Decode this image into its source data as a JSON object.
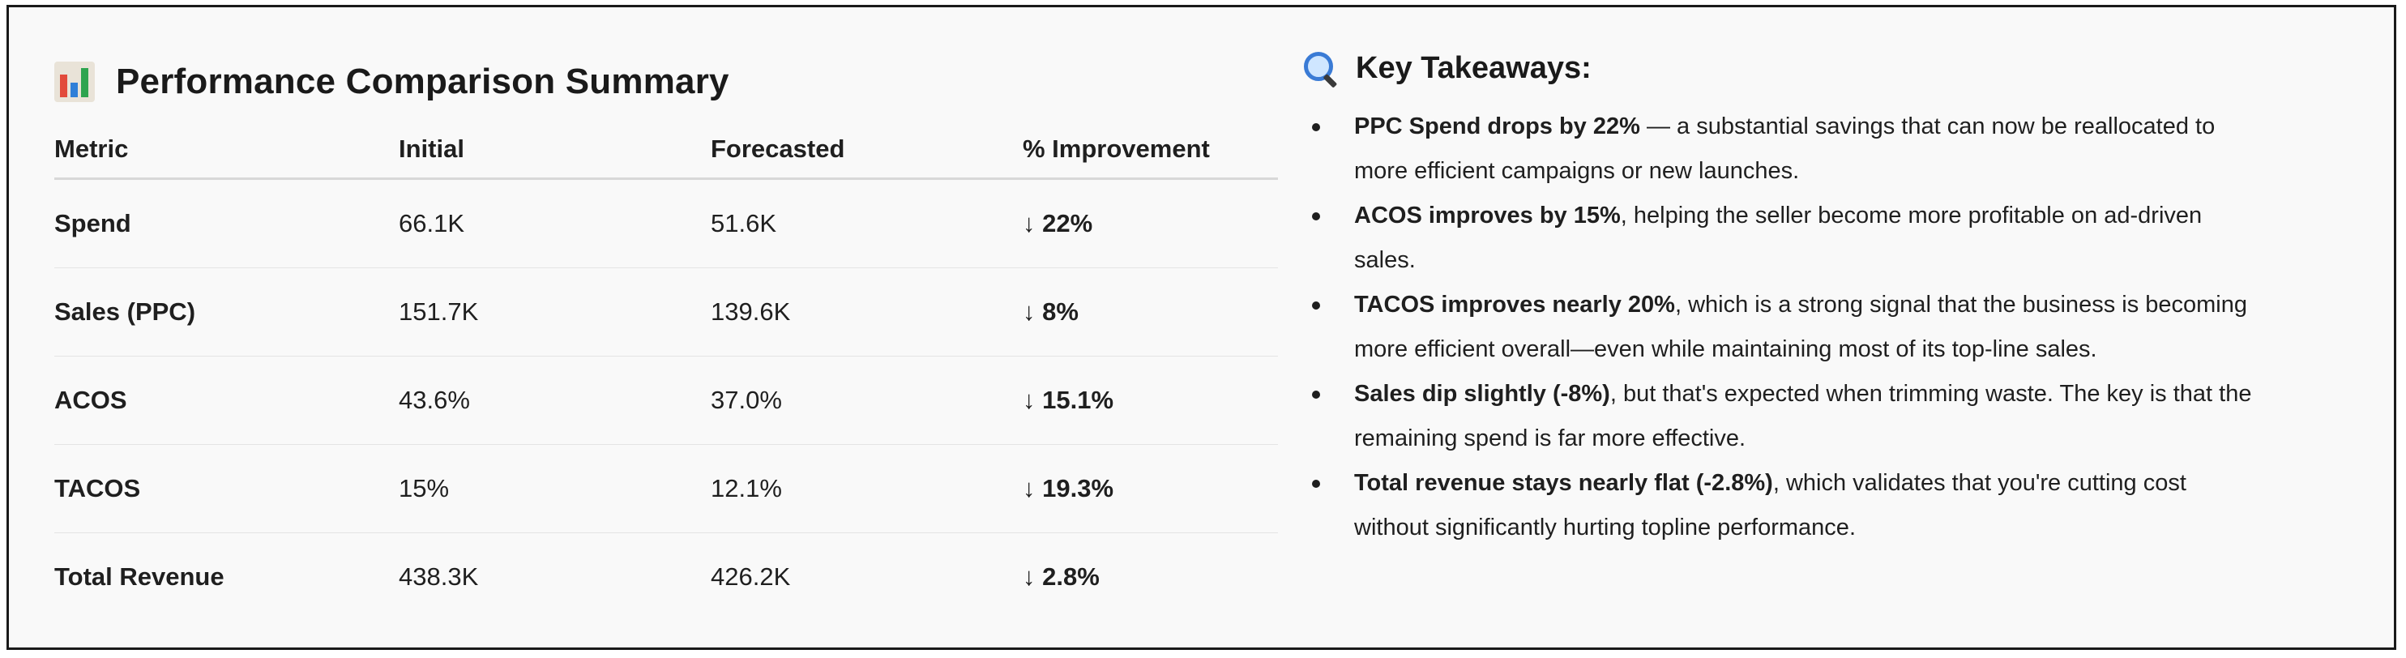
{
  "summary": {
    "title": "Performance Comparison Summary",
    "icon": "bar-chart-icon",
    "columns": [
      "Metric",
      "Initial",
      "Forecasted",
      "% Improvement"
    ],
    "rows": [
      {
        "metric": "Spend",
        "initial": "66.1K",
        "forecasted": "51.6K",
        "improvement": "↓ 22%"
      },
      {
        "metric": "Sales (PPC)",
        "initial": "151.7K",
        "forecasted": "139.6K",
        "improvement": "↓ 8%"
      },
      {
        "metric": "ACOS",
        "initial": "43.6%",
        "forecasted": "37.0%",
        "improvement": "↓ 15.1%"
      },
      {
        "metric": "TACOS",
        "initial": "15%",
        "forecasted": "12.1%",
        "improvement": "↓ 19.3%"
      },
      {
        "metric": "Total Revenue",
        "initial": "438.3K",
        "forecasted": "426.2K",
        "improvement": "↓ 2.8%"
      }
    ]
  },
  "takeaways": {
    "title": "Key Takeaways:",
    "icon": "magnifying-glass-icon",
    "items": [
      {
        "bold": "PPC Spend drops by 22%",
        "line1": " — a substantial savings that can now be reallocated to",
        "line2": "more efficient campaigns or new launches."
      },
      {
        "bold": "ACOS improves by 15%",
        "line1": ", helping the seller become more profitable on ad-driven",
        "line2": "sales."
      },
      {
        "bold": "TACOS improves nearly 20%",
        "line1": ", which is a strong signal that the business is becoming",
        "line2": "more efficient overall—even while maintaining most of its top-line sales."
      },
      {
        "bold": "Sales dip slightly (-8%)",
        "line1": ", but that's expected when trimming waste. The key is that the",
        "line2": "remaining spend is far more effective."
      },
      {
        "bold": "Total revenue stays nearly flat (-2.8%)",
        "line1": ", which validates that you're cutting cost",
        "line2": "without significantly hurting topline performance."
      }
    ]
  }
}
